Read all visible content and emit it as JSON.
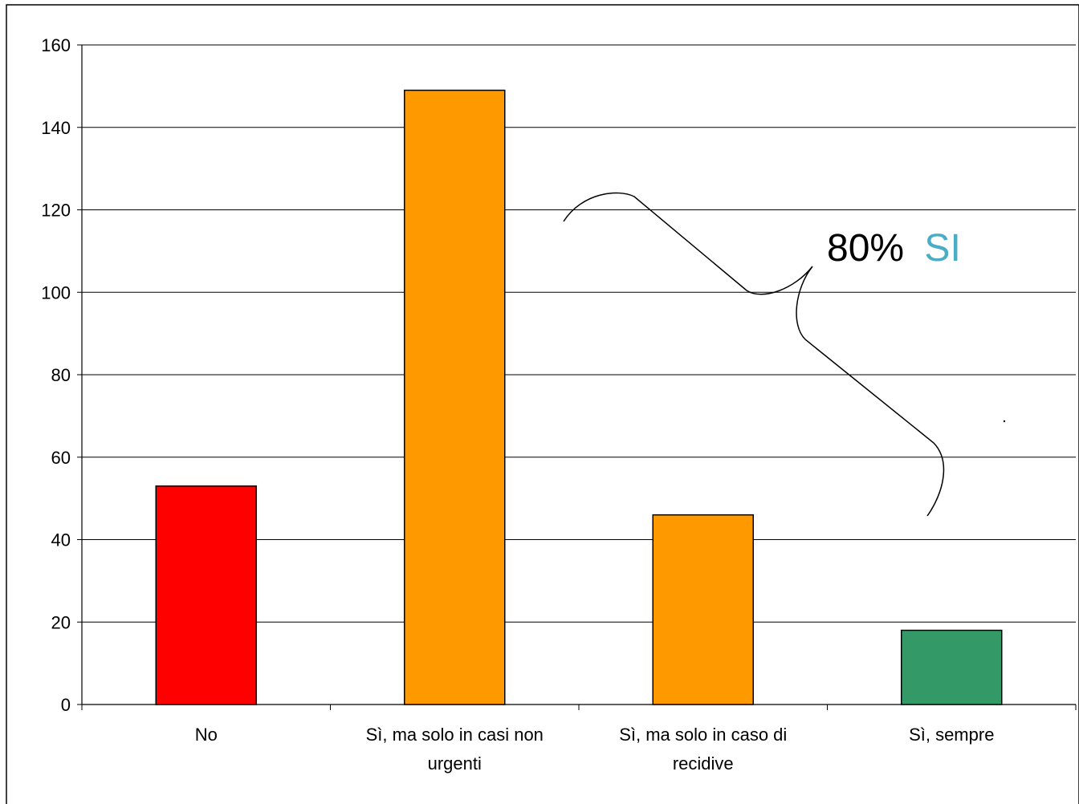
{
  "chart_data": {
    "type": "bar",
    "categories": [
      [
        "No"
      ],
      [
        "Sì, ma solo in casi non",
        "urgenti"
      ],
      [
        "Sì, ma solo in caso di",
        "recidive"
      ],
      [
        "Sì, sempre"
      ]
    ],
    "values": [
      53,
      149,
      46,
      18
    ],
    "bar_colors": [
      "#ff0000",
      "#ff9900",
      "#ff9900",
      "#339966"
    ],
    "title": "",
    "xlabel": "",
    "ylabel": "",
    "ylim": [
      0,
      160
    ],
    "yticks": [
      "0",
      "20",
      "40",
      "60",
      "80",
      "100",
      "120",
      "140",
      "160"
    ],
    "grid": true,
    "legend": "none"
  },
  "annotation": {
    "percent": "80%",
    "word": "SI",
    "percent_color": "#000000",
    "word_color": "#4bacc6",
    "brace_spans_categories": [
      "Sì, ma solo in casi non urgenti",
      "Sì, sempre"
    ]
  }
}
